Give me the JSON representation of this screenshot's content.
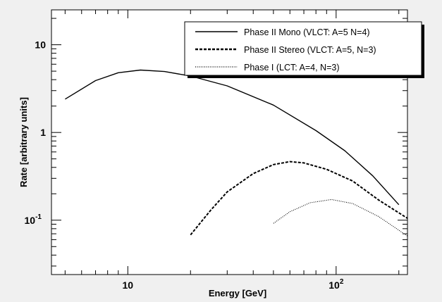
{
  "chart_data": {
    "type": "line",
    "xlabel": "Energy [GeV]",
    "ylabel": "Rate [arbitrary units]",
    "x_scale": "log",
    "y_scale": "log",
    "xlim": [
      4.3,
      220
    ],
    "ylim": [
      0.024,
      25
    ],
    "grid": false,
    "legend_position": "top-right",
    "x_ticks": [
      {
        "value": 10,
        "label": "10"
      },
      {
        "value": 100,
        "label": "10",
        "exp": "2"
      }
    ],
    "y_ticks": [
      {
        "value": 0.1,
        "label": "10",
        "exp": "-1"
      },
      {
        "value": 1,
        "label": "1"
      },
      {
        "value": 10,
        "label": "10"
      }
    ],
    "series": [
      {
        "name": "Phase II Mono (VLCT: A=5 N=4)",
        "style": "solid",
        "color": "#000000",
        "points": [
          [
            5,
            2.4
          ],
          [
            7,
            3.9
          ],
          [
            9,
            4.8
          ],
          [
            11.5,
            5.15
          ],
          [
            15,
            4.95
          ],
          [
            20,
            4.4
          ],
          [
            30,
            3.4
          ],
          [
            50,
            2.05
          ],
          [
            80,
            1.05
          ],
          [
            110,
            0.62
          ],
          [
            150,
            0.32
          ],
          [
            200,
            0.15
          ]
        ]
      },
      {
        "name": "Phase II Stereo (VLCT: A=5, N=3)",
        "style": "dashed",
        "color": "#000000",
        "points": [
          [
            20,
            0.068
          ],
          [
            25,
            0.13
          ],
          [
            30,
            0.21
          ],
          [
            40,
            0.34
          ],
          [
            50,
            0.43
          ],
          [
            60,
            0.465
          ],
          [
            70,
            0.45
          ],
          [
            90,
            0.38
          ],
          [
            120,
            0.28
          ],
          [
            160,
            0.17
          ],
          [
            220,
            0.105
          ]
        ]
      },
      {
        "name": "Phase I (LCT: A=4, N=3)",
        "style": "dotted",
        "color": "#000000",
        "points": [
          [
            50,
            0.092
          ],
          [
            60,
            0.125
          ],
          [
            75,
            0.158
          ],
          [
            95,
            0.172
          ],
          [
            120,
            0.155
          ],
          [
            160,
            0.11
          ],
          [
            220,
            0.066
          ]
        ]
      }
    ]
  }
}
